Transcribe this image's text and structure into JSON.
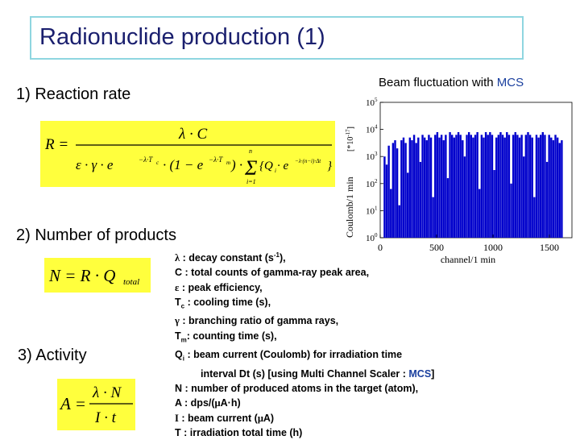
{
  "title": "Radionuclide production (1)",
  "sections": {
    "reaction_rate": "1)  Reaction rate",
    "number_of_products": "2) Number of products",
    "activity": "3) Activity"
  },
  "formulas": {
    "rate_lhs": "R =",
    "rate_numerator": "λ · C",
    "rate_den_a": "ε · γ · e",
    "rate_den_a_exp": "−λ·T",
    "rate_den_a_sub": "c",
    "rate_den_b": "· (1 − e",
    "rate_den_b_exp": "−λ·T",
    "rate_den_b_sub": "m",
    "rate_den_c": ") ·",
    "sum_top": "n",
    "sum_bottom": "i=1",
    "sum_term": "{Q",
    "sum_term_sub": "i",
    "sum_term_e": " · e",
    "sum_term_exp": "−λ·(n−i)·Δt",
    "sum_term_end": "}",
    "number": "N = R · Q",
    "number_sub": "total",
    "activity_lhs": "A =",
    "activity_numerator": "λ · N",
    "activity_denominator": "I · t"
  },
  "chart_header": {
    "text": "Beam fluctuation with ",
    "mcs": "MCS"
  },
  "chart_data": {
    "type": "bar",
    "title": "Beam fluctuation with MCS",
    "xlabel": "channel/1 min",
    "ylabel": "Coulomb/1 min",
    "ylabel_unit": "[*10",
    "ylabel_unit_exp": "-17",
    "ylabel_unit_end": "]",
    "x_ticks": [
      "0",
      "500",
      "1000",
      "1500"
    ],
    "y_ticks": [
      "10",
      "10",
      "10",
      "10",
      "10",
      "10"
    ],
    "y_tick_exps": [
      "0",
      "1",
      "2",
      "3",
      "4",
      "5"
    ],
    "x_range": [
      0,
      1700
    ],
    "y_log_range": [
      0,
      5
    ],
    "y_scale": "log",
    "color": "#0000cc",
    "values_log10": [
      3.0,
      2.7,
      3.4,
      1.8,
      3.5,
      3.6,
      3.3,
      1.2,
      3.6,
      3.7,
      3.5,
      2.4,
      3.7,
      3.6,
      3.8,
      3.5,
      3.7,
      2.8,
      3.8,
      3.7,
      3.6,
      3.8,
      3.7,
      1.5,
      3.8,
      3.9,
      3.7,
      3.8,
      3.6,
      3.8,
      2.2,
      3.9,
      3.8,
      3.7,
      3.8,
      3.9,
      3.8,
      3.6,
      3.0,
      3.8,
      3.9,
      3.8,
      3.7,
      3.8,
      3.9,
      1.8,
      3.8,
      3.7,
      3.9,
      3.8,
      3.9,
      3.8,
      2.5,
      3.7,
      3.8,
      3.9,
      3.8,
      3.7,
      3.9,
      3.8,
      2.0,
      3.8,
      3.9,
      3.8,
      3.7,
      3.8,
      3.0,
      3.8,
      3.9,
      3.8,
      3.7,
      1.5,
      3.8,
      3.7,
      3.8,
      3.9,
      3.8,
      2.8,
      3.8,
      3.7,
      3.6,
      3.8,
      3.7,
      3.5,
      3.6
    ]
  },
  "legend": {
    "l1_sym": "λ",
    "l1": " : decay constant (s",
    "l1_exp": "-1",
    "l1_end": "),",
    "l2": "C : total counts of gamma-ray peak area,",
    "l3_sym": "ε",
    "l3": " :  peak efficiency,",
    "l4_a": "T",
    "l4_sub": "c",
    "l4": " : cooling time (s),",
    "l5_sym": "γ",
    "l5": "  :  branching ratio of gamma rays,",
    "l6_a": "T",
    "l6_sub": "m",
    "l6": ": counting time (s),",
    "l7_a": "Q",
    "l7_sub": "i",
    "l7": " : beam current (Coulomb) for irradiation time",
    "l8": "interval Dt (s) [using Multi Channel Scaler : ",
    "l8_mcs": "MCS",
    "l8_end": "]",
    "l9": "N : number of produced atoms in the target (atom),",
    "l10_a": "A : dps/(",
    "l10_mu": "μ",
    "l10_b": "A·h)",
    "l11_a": "I",
    "l11_b": "  : beam current (",
    "l11_mu": "μ",
    "l11_c": "A)",
    "l12": "T  : irradiation total time (h)"
  }
}
